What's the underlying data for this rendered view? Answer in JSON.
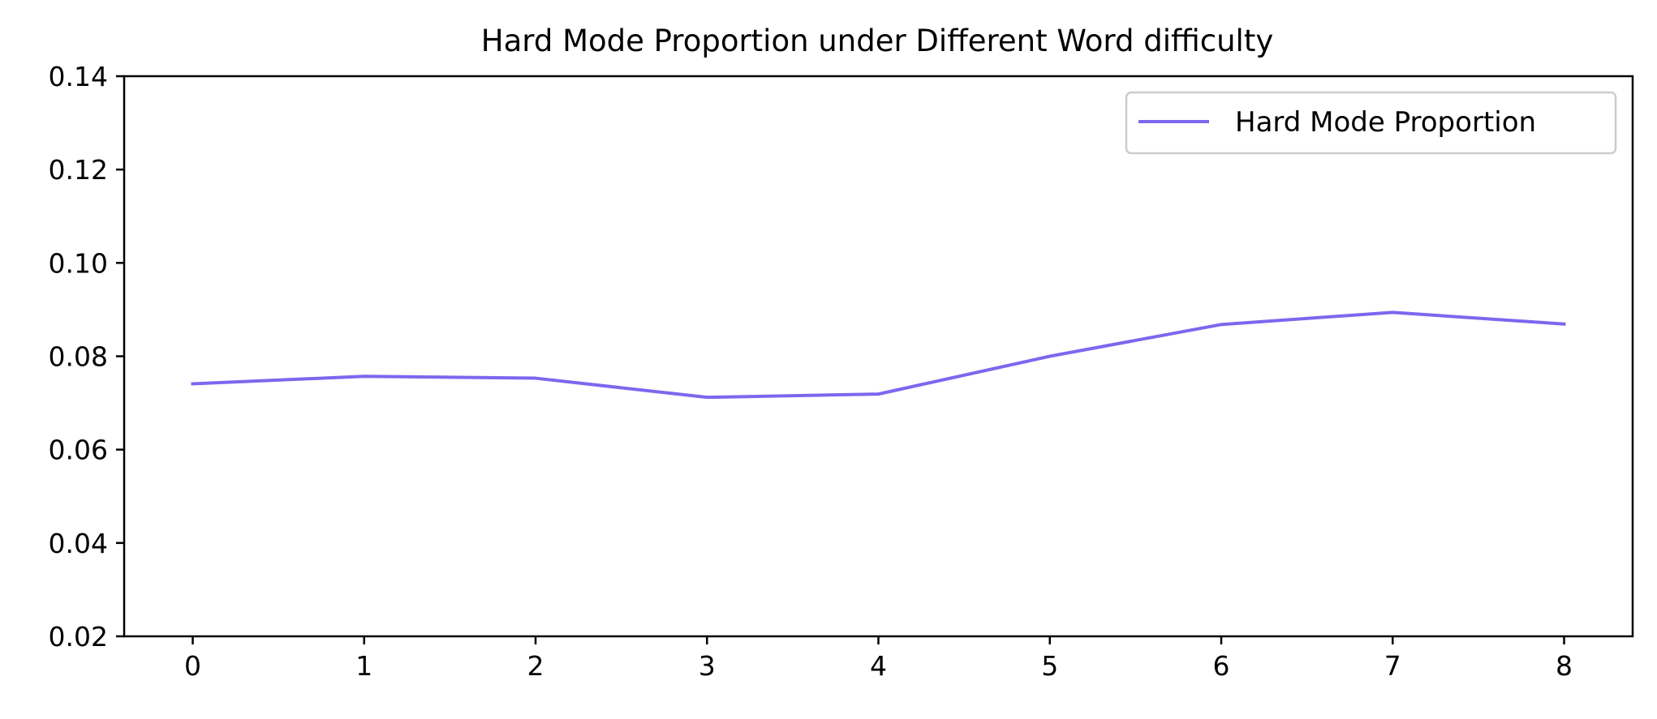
{
  "chart_data": {
    "type": "line",
    "title": "Hard Mode Proportion under Different Word difficulty",
    "xlabel": "",
    "ylabel": "",
    "x": [
      0,
      1,
      2,
      3,
      4,
      5,
      6,
      7,
      8
    ],
    "xticks": [
      "0",
      "1",
      "2",
      "3",
      "4",
      "5",
      "6",
      "7",
      "8"
    ],
    "yticks": [
      "0.02",
      "0.04",
      "0.06",
      "0.08",
      "0.10",
      "0.12",
      "0.14"
    ],
    "xlim": [
      -0.4,
      8.4
    ],
    "ylim": [
      0.02,
      0.14
    ],
    "grid": false,
    "legend_position": "top-right",
    "series": [
      {
        "name": "Hard Mode Proportion",
        "color": "#7b68ee",
        "values": [
          0.0741,
          0.0757,
          0.0753,
          0.0712,
          0.0719,
          0.08,
          0.0868,
          0.0894,
          0.0869
        ]
      }
    ]
  }
}
